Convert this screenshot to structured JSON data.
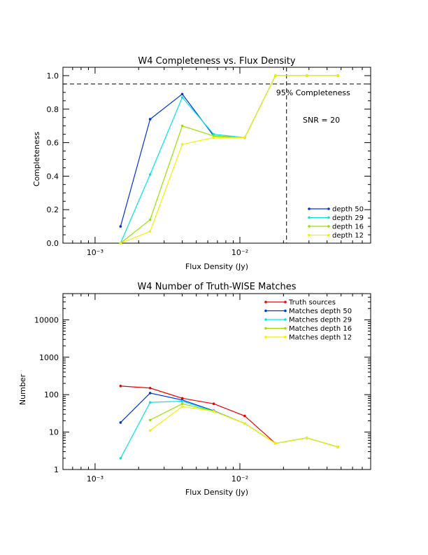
{
  "chart_data": [
    {
      "type": "line",
      "title": "W4 Completeness vs. Flux Density",
      "xlabel": "Flux Density (Jy)",
      "ylabel": "Completeness",
      "xscale": "log",
      "xlim": [
        0.0006,
        0.08
      ],
      "ylim": [
        0,
        1.05
      ],
      "yticks": [
        0.0,
        0.2,
        0.4,
        0.6,
        0.8,
        1.0
      ],
      "ytick_labels": [
        "0.0",
        "0.2",
        "0.4",
        "0.6",
        "0.8",
        "1.0"
      ],
      "xticks": [
        0.001,
        0.01
      ],
      "xtick_labels": [
        "10⁻³",
        "10⁻²"
      ],
      "x": [
        0.0015,
        0.0024,
        0.004,
        0.0066,
        0.0108,
        0.0176,
        0.029,
        0.0475
      ],
      "series": [
        {
          "name": "depth 50",
          "color": "#0033dd",
          "values": [
            0.1,
            0.74,
            0.89,
            0.64,
            0.63,
            1.0,
            1.0,
            1.0
          ]
        },
        {
          "name": "depth 29",
          "color": "#00e5e5",
          "values": [
            0.0,
            0.41,
            0.87,
            0.65,
            0.63,
            1.0,
            1.0,
            1.0
          ]
        },
        {
          "name": "depth 16",
          "color": "#99e000",
          "values": [
            0.0,
            0.14,
            0.7,
            0.64,
            0.63,
            1.0,
            1.0,
            1.0
          ]
        },
        {
          "name": "depth 12",
          "color": "#f2f200",
          "values": [
            0.0,
            0.07,
            0.59,
            0.63,
            0.63,
            1.0,
            1.0,
            1.0
          ]
        }
      ],
      "hline": {
        "y": 0.95,
        "label": "95% Completeness"
      },
      "vline": {
        "x": 0.021
      },
      "annotation": "SNR = 20",
      "legend_position": "bottom-right"
    },
    {
      "type": "line",
      "title": "W4 Number of Truth-WISE Matches",
      "xlabel": "Flux Density (Jy)",
      "ylabel": "Number",
      "xscale": "log",
      "yscale": "log",
      "xlim": [
        0.0006,
        0.08
      ],
      "ylim": [
        1,
        50000
      ],
      "yticks": [
        1,
        10,
        100,
        1000,
        10000
      ],
      "ytick_labels": [
        "1",
        "10",
        "100",
        "1000",
        "10000"
      ],
      "xticks": [
        0.001,
        0.01
      ],
      "xtick_labels": [
        "10⁻³",
        "10⁻²"
      ],
      "x": [
        0.0015,
        0.0024,
        0.004,
        0.0066,
        0.0108,
        0.0176,
        0.029,
        0.0475
      ],
      "series": [
        {
          "name": "Truth sources",
          "color": "#ee0000",
          "values": [
            170,
            150,
            80,
            57,
            27,
            5,
            7,
            4
          ]
        },
        {
          "name": "Matches depth 50",
          "color": "#0033dd",
          "values": [
            18,
            110,
            72,
            37,
            17,
            5,
            7,
            4
          ]
        },
        {
          "name": "Matches depth 29",
          "color": "#00e5e5",
          "values": [
            2,
            62,
            67,
            36,
            17,
            5,
            7,
            4
          ]
        },
        {
          "name": "Matches depth 16",
          "color": "#99e000",
          "values": [
            null,
            21,
            57,
            36,
            17,
            5,
            7,
            4
          ]
        },
        {
          "name": "Matches depth 12",
          "color": "#f2f200",
          "values": [
            null,
            11,
            48,
            36,
            17,
            5,
            7,
            4
          ]
        }
      ],
      "legend_position": "top-right"
    }
  ]
}
